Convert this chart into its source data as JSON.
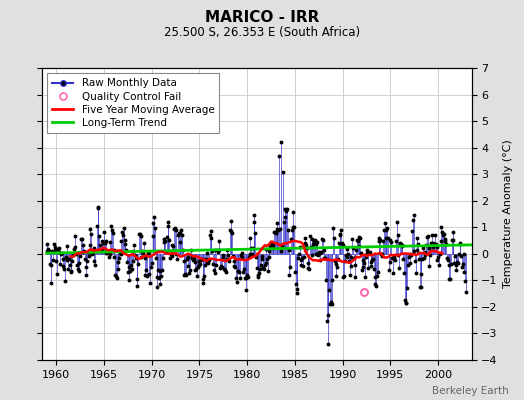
{
  "title": "MARICO - IRR",
  "subtitle": "25.500 S, 26.353 E (South Africa)",
  "ylabel": "Temperature Anomaly (°C)",
  "watermark": "Berkeley Earth",
  "xlim": [
    1958.5,
    2003.5
  ],
  "ylim": [
    -4,
    7
  ],
  "yticks": [
    -4,
    -3,
    -2,
    -1,
    0,
    1,
    2,
    3,
    4,
    5,
    6,
    7
  ],
  "xticks": [
    1960,
    1965,
    1970,
    1975,
    1980,
    1985,
    1990,
    1995,
    2000
  ],
  "background_color": "#e0e0e0",
  "plot_bg_color": "#ffffff",
  "grid_color": "#c8c8c8",
  "long_term_trend_color": "#00cc00",
  "moving_avg_color": "#ff0000",
  "raw_line_color": "#3333cc",
  "raw_dot_color": "#000000",
  "qc_fail_color": "#ff69b4",
  "qc_fail_x": 1992.25,
  "qc_fail_y": -1.45,
  "title_fontsize": 11,
  "subtitle_fontsize": 8.5,
  "tick_fontsize": 8,
  "legend_fontsize": 7.5,
  "ylabel_fontsize": 8
}
